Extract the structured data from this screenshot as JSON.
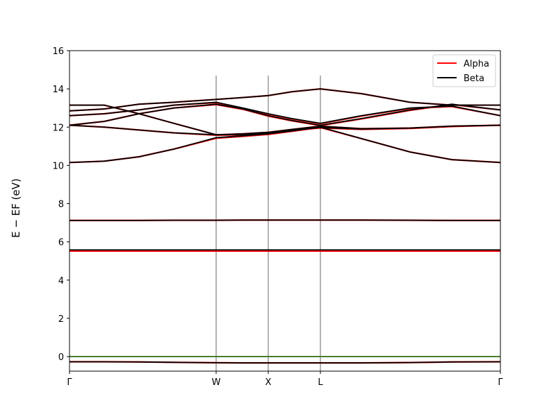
{
  "chart_data": {
    "type": "line",
    "ylabel": "E − EF (eV)",
    "x": [
      0,
      0.5,
      1.0,
      1.5,
      2.11,
      2.5,
      2.86,
      3.2,
      3.61,
      4.2,
      4.9,
      5.5,
      6.2
    ],
    "xlim": [
      0,
      6.2
    ],
    "xticks": [
      {
        "value": 0,
        "label": "Γ"
      },
      {
        "value": 2.11,
        "label": "W"
      },
      {
        "value": 2.86,
        "label": "X"
      },
      {
        "value": 3.61,
        "label": "L"
      },
      {
        "value": 6.2,
        "label": "Γ"
      }
    ],
    "ylim": [
      -0.76,
      16
    ],
    "yticks": [
      0,
      2,
      4,
      6,
      8,
      10,
      12,
      14,
      16
    ],
    "kpoint_lines_top": 14.7,
    "fermi_level": {
      "value": 0,
      "color": "#4a7d2a"
    },
    "legend": "upper right",
    "series": [
      {
        "name": "Alpha",
        "color": "#ff0000",
        "bands": [
          [
            -0.27,
            -0.27,
            -0.28,
            -0.3,
            -0.32,
            -0.33,
            -0.33,
            -0.33,
            -0.33,
            -0.33,
            -0.31,
            -0.28,
            -0.27
          ],
          [
            5.52,
            5.52,
            5.52,
            5.52,
            5.52,
            5.52,
            5.52,
            5.52,
            5.52,
            5.52,
            5.52,
            5.52,
            5.52
          ],
          [
            7.12,
            7.12,
            7.12,
            7.13,
            7.13,
            7.14,
            7.14,
            7.14,
            7.14,
            7.14,
            7.13,
            7.12,
            7.12
          ],
          [
            10.15,
            10.22,
            10.45,
            10.85,
            11.42,
            11.52,
            11.62,
            11.78,
            11.98,
            11.4,
            10.7,
            10.3,
            10.15
          ],
          [
            12.1,
            12.0,
            11.85,
            11.7,
            11.58,
            11.6,
            11.68,
            11.83,
            11.96,
            11.88,
            11.93,
            12.03,
            12.1
          ],
          [
            12.1,
            12.3,
            12.7,
            13.0,
            13.18,
            12.93,
            12.58,
            12.33,
            12.08,
            12.43,
            12.88,
            13.18,
            12.9
          ],
          [
            12.6,
            12.7,
            12.9,
            13.15,
            13.28,
            12.98,
            12.68,
            12.43,
            12.18,
            12.58,
            12.98,
            13.08,
            12.6
          ],
          [
            13.15,
            13.15,
            12.7,
            12.2,
            11.6,
            11.65,
            11.73,
            11.88,
            12.05,
            11.92,
            11.95,
            12.05,
            12.1
          ],
          [
            12.85,
            12.95,
            13.2,
            13.3,
            13.45,
            13.55,
            13.65,
            13.85,
            14.0,
            13.75,
            13.3,
            13.15,
            13.15
          ]
        ]
      },
      {
        "name": "Beta",
        "color": "#000000",
        "bands": [
          [
            -0.27,
            -0.27,
            -0.28,
            -0.3,
            -0.32,
            -0.33,
            -0.33,
            -0.33,
            -0.33,
            -0.33,
            -0.31,
            -0.28,
            -0.27
          ],
          [
            5.58,
            5.58,
            5.58,
            5.58,
            5.58,
            5.58,
            5.58,
            5.58,
            5.58,
            5.58,
            5.58,
            5.58,
            5.58
          ],
          [
            7.12,
            7.12,
            7.12,
            7.13,
            7.13,
            7.14,
            7.14,
            7.14,
            7.14,
            7.14,
            7.13,
            7.12,
            7.12
          ],
          [
            10.15,
            10.22,
            10.45,
            10.85,
            11.45,
            11.55,
            11.65,
            11.8,
            12.0,
            11.4,
            10.7,
            10.3,
            10.15
          ],
          [
            12.1,
            12.0,
            11.85,
            11.7,
            11.6,
            11.62,
            11.7,
            11.85,
            11.98,
            11.9,
            11.95,
            12.05,
            12.1
          ],
          [
            12.1,
            12.3,
            12.7,
            13.0,
            13.2,
            12.95,
            12.6,
            12.35,
            12.1,
            12.45,
            12.9,
            13.2,
            12.9
          ],
          [
            12.6,
            12.7,
            12.9,
            13.15,
            13.3,
            13.0,
            12.7,
            12.45,
            12.2,
            12.6,
            13.0,
            13.1,
            12.6
          ],
          [
            13.15,
            13.15,
            12.7,
            12.2,
            11.6,
            11.65,
            11.73,
            11.88,
            12.05,
            11.92,
            11.95,
            12.05,
            12.1
          ],
          [
            12.85,
            12.95,
            13.2,
            13.3,
            13.45,
            13.55,
            13.65,
            13.85,
            14.0,
            13.75,
            13.3,
            13.15,
            13.15
          ]
        ]
      }
    ]
  }
}
